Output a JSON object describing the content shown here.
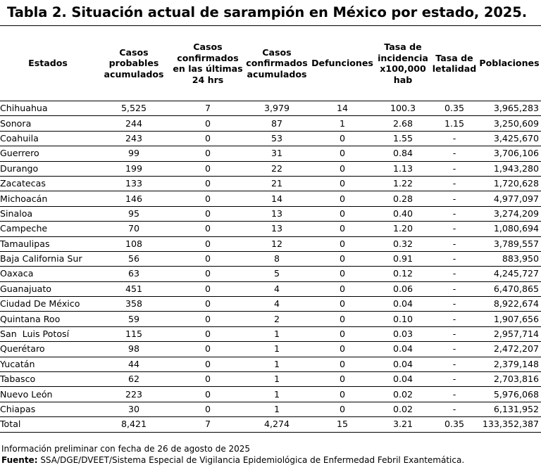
{
  "title": "Tabla 2. Situación actual de sarampión en México por estado, 2025.",
  "headers": [
    "Estados",
    "Casos probables acumulados",
    "Casos confirmados en las últimas 24 hrs",
    "Casos confirmados acumulados",
    "Defunciones",
    "Tasa de incidencia x100,000 hab",
    "Tasa de letalidad",
    "Poblaciones"
  ],
  "rows": [
    [
      "Chihuahua",
      "5,525",
      "7",
      "3,979",
      "14",
      "100.3",
      "0.35",
      "3,965,283"
    ],
    [
      "Sonora",
      "244",
      "0",
      "87",
      "1",
      "2.68",
      "1.15",
      "3,250,609"
    ],
    [
      "Coahuila",
      "243",
      "0",
      "53",
      "0",
      "1.55",
      "-",
      "3,425,670"
    ],
    [
      "Guerrero",
      "99",
      "0",
      "31",
      "0",
      "0.84",
      "-",
      "3,706,106"
    ],
    [
      "Durango",
      "199",
      "0",
      "22",
      "0",
      "1.13",
      "-",
      "1,943,280"
    ],
    [
      "Zacatecas",
      "133",
      "0",
      "21",
      "0",
      "1.22",
      "-",
      "1,720,628"
    ],
    [
      "Michoacán",
      "146",
      "0",
      "14",
      "0",
      "0.28",
      "-",
      "4,977,097"
    ],
    [
      "Sinaloa",
      "95",
      "0",
      "13",
      "0",
      "0.40",
      "-",
      "3,274,209"
    ],
    [
      "Campeche",
      "70",
      "0",
      "13",
      "0",
      "1.20",
      "-",
      "1,080,694"
    ],
    [
      "Tamaulipas",
      "108",
      "0",
      "12",
      "0",
      "0.32",
      "-",
      "3,789,557"
    ],
    [
      "Baja California Sur",
      "56",
      "0",
      "8",
      "0",
      "0.91",
      "-",
      "883,950"
    ],
    [
      "Oaxaca",
      "63",
      "0",
      "5",
      "0",
      "0.12",
      "-",
      "4,245,727"
    ],
    [
      "Guanajuato",
      "451",
      "0",
      "4",
      "0",
      "0.06",
      "-",
      "6,470,865"
    ],
    [
      "Ciudad De México",
      "358",
      "0",
      "4",
      "0",
      "0.04",
      "-",
      "8,922,674"
    ],
    [
      "Quintana Roo",
      "59",
      "0",
      "2",
      "0",
      "0.10",
      "-",
      "1,907,656"
    ],
    [
      "San  Luis Potosí",
      "115",
      "0",
      "1",
      "0",
      "0.03",
      "-",
      "2,957,714"
    ],
    [
      "Querétaro",
      "98",
      "0",
      "1",
      "0",
      "0.04",
      "-",
      "2,472,207"
    ],
    [
      "Yucatán",
      "44",
      "0",
      "1",
      "0",
      "0.04",
      "-",
      "2,379,148"
    ],
    [
      "Tabasco",
      "62",
      "0",
      "1",
      "0",
      "0.04",
      "-",
      "2,703,816"
    ],
    [
      "Nuevo León",
      "223",
      "0",
      "1",
      "0",
      "0.02",
      "-",
      "5,976,068"
    ],
    [
      "Chiapas",
      "30",
      "0",
      "1",
      "0",
      "0.02",
      "-",
      "6,131,952"
    ],
    [
      "Total",
      "8,421",
      "7",
      "4,274",
      "15",
      "3.21",
      "0.35",
      "133,352,387"
    ]
  ],
  "note": "Información preliminar con fecha de 26 de agosto de 2025",
  "source_label": "Fuente:",
  "source_text": " SSA/DGE/DVEET/Sistema Especial de Vigilancia Epidemiológica de Enfermedad Febril Exantemática."
}
